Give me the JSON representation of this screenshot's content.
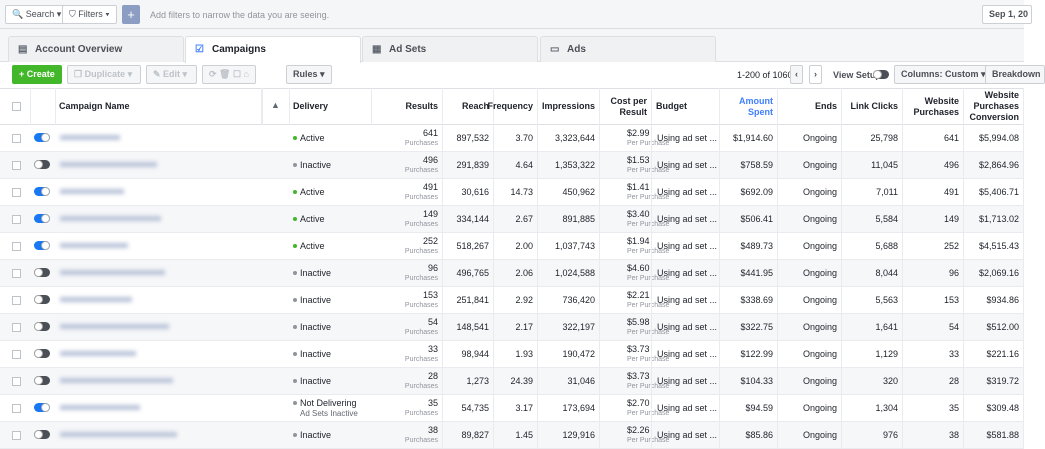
{
  "topbar": {
    "search": "Search",
    "filters": "Filters",
    "hint": "Add filters to narrow the data you are seeing.",
    "date": "Sep 1, 20"
  },
  "tabs": [
    {
      "label": "Account Overview",
      "active": false
    },
    {
      "label": "Campaigns",
      "active": true
    },
    {
      "label": "Ad Sets",
      "active": false
    },
    {
      "label": "Ads",
      "active": false
    }
  ],
  "toolbar": {
    "create": "Create",
    "duplicate": "Duplicate",
    "edit": "Edit",
    "rules": "Rules",
    "pager": "1-200 of 1060",
    "view_setup": "View Setup",
    "columns": "Columns: Custom",
    "breakdown": "Breakdown"
  },
  "table": {
    "columns": [
      "Campaign Name",
      "Delivery",
      "Results",
      "Reach",
      "Frequency",
      "Impressions",
      "Cost per Result",
      "Budget",
      "Amount Spent",
      "Ends",
      "Link Clicks",
      "Website Purchases",
      "Website Purchases Conversion"
    ],
    "rows": [
      {
        "on": true,
        "delivery": "Active",
        "cells": [
          "641",
          "897,532",
          "3.70",
          "3,323,644",
          "$2.99",
          "Using ad set ...",
          "$1,914.60",
          "Ongoing",
          "25,798",
          "641",
          "$5,994.08"
        ]
      },
      {
        "on": false,
        "delivery": "Inactive",
        "cells": [
          "496",
          "291,839",
          "4.64",
          "1,353,322",
          "$1.53",
          "Using ad set ...",
          "$758.59",
          "Ongoing",
          "11,045",
          "496",
          "$2,864.96"
        ]
      },
      {
        "on": true,
        "delivery": "Active",
        "cells": [
          "491",
          "30,616",
          "14.73",
          "450,962",
          "$1.41",
          "Using ad set ...",
          "$692.09",
          "Ongoing",
          "7,011",
          "491",
          "$5,406.71"
        ]
      },
      {
        "on": true,
        "delivery": "Active",
        "cells": [
          "149",
          "334,144",
          "2.67",
          "891,885",
          "$3.40",
          "Using ad set ...",
          "$506.41",
          "Ongoing",
          "5,584",
          "149",
          "$1,713.02"
        ]
      },
      {
        "on": true,
        "delivery": "Active",
        "cells": [
          "252",
          "518,267",
          "2.00",
          "1,037,743",
          "$1.94",
          "Using ad set ...",
          "$489.73",
          "Ongoing",
          "5,688",
          "252",
          "$4,515.43"
        ]
      },
      {
        "on": false,
        "delivery": "Inactive",
        "cells": [
          "96",
          "496,765",
          "2.06",
          "1,024,588",
          "$4.60",
          "Using ad set ...",
          "$441.95",
          "Ongoing",
          "8,044",
          "96",
          "$2,069.16"
        ]
      },
      {
        "on": false,
        "delivery": "Inactive",
        "cells": [
          "153",
          "251,841",
          "2.92",
          "736,420",
          "$2.21",
          "Using ad set ...",
          "$338.69",
          "Ongoing",
          "5,563",
          "153",
          "$934.86"
        ]
      },
      {
        "on": false,
        "delivery": "Inactive",
        "cells": [
          "54",
          "148,541",
          "2.17",
          "322,197",
          "$5.98",
          "Using ad set ...",
          "$322.75",
          "Ongoing",
          "1,641",
          "54",
          "$512.00"
        ]
      },
      {
        "on": false,
        "delivery": "Inactive",
        "cells": [
          "33",
          "98,944",
          "1.93",
          "190,472",
          "$3.73",
          "Using ad set ...",
          "$122.99",
          "Ongoing",
          "1,129",
          "33",
          "$221.16"
        ]
      },
      {
        "on": false,
        "delivery": "Inactive",
        "cells": [
          "28",
          "1,273",
          "24.39",
          "31,046",
          "$3.73",
          "Using ad set ...",
          "$104.33",
          "Ongoing",
          "320",
          "28",
          "$319.72"
        ]
      },
      {
        "on": true,
        "delivery": "Not Delivering",
        "delivery_sub": "Ad Sets Inactive",
        "cells": [
          "35",
          "54,735",
          "3.17",
          "173,694",
          "$2.70",
          "Using ad set ...",
          "$94.59",
          "Ongoing",
          "1,304",
          "35",
          "$309.48"
        ]
      },
      {
        "on": false,
        "delivery": "Inactive",
        "cells": [
          "38",
          "89,827",
          "1.45",
          "129,916",
          "$2.26",
          "Using ad set ...",
          "$85.86",
          "Ongoing",
          "976",
          "38",
          "$581.88"
        ]
      }
    ],
    "result_unit": "Purchases",
    "cost_unit": "Per Purchase"
  }
}
